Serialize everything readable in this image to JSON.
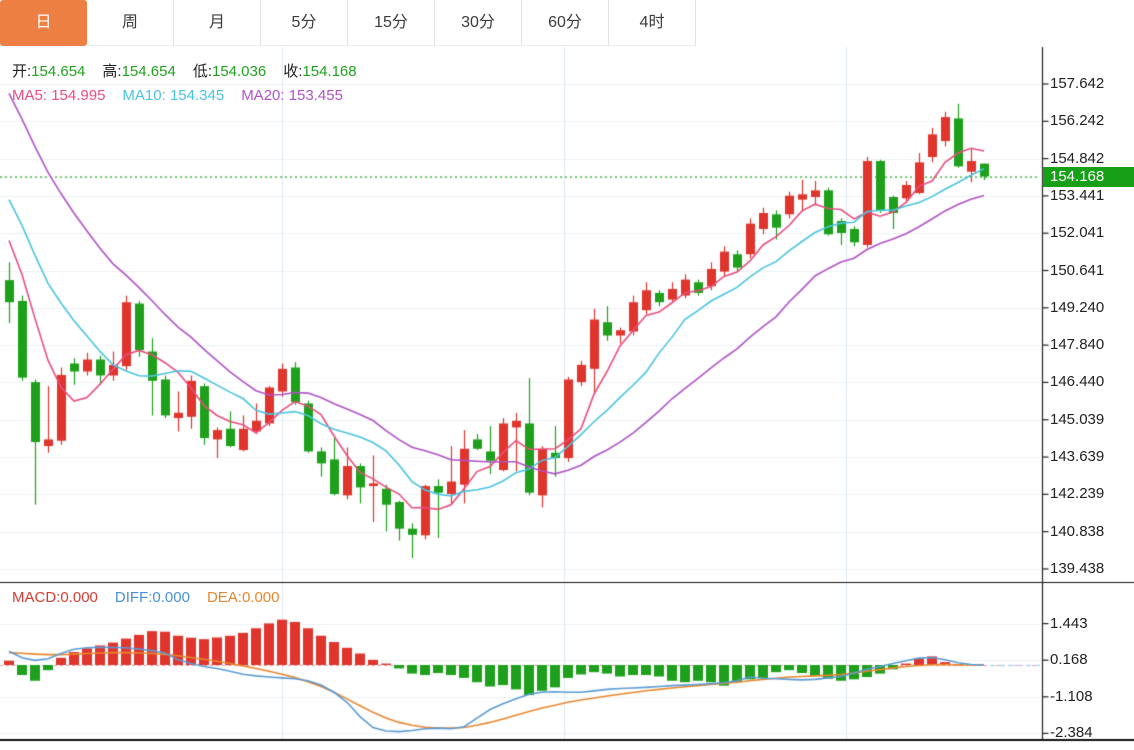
{
  "tabs": {
    "items": [
      {
        "label": "日",
        "active": true
      },
      {
        "label": "周",
        "active": false
      },
      {
        "label": "月",
        "active": false
      },
      {
        "label": "5分",
        "active": false
      },
      {
        "label": "15分",
        "active": false
      },
      {
        "label": "30分",
        "active": false
      },
      {
        "label": "60分",
        "active": false
      },
      {
        "label": "4时",
        "active": false
      }
    ]
  },
  "price_info": {
    "open_label": "开:",
    "open_value": "154.654",
    "high_label": "高:",
    "high_value": "154.654",
    "low_label": "低:",
    "low_value": "154.036",
    "close_label": "收:",
    "close_value": "154.168"
  },
  "ma_info": {
    "ma5_label": "MA5:",
    "ma5_value": "154.995",
    "ma10_label": "MA10:",
    "ma10_value": "154.345",
    "ma20_label": "MA20:",
    "ma20_value": "153.455"
  },
  "macd_info": {
    "macd_label": "MACD:",
    "macd_value": "0.000",
    "diff_label": "DIFF:",
    "diff_value": "0.000",
    "dea_label": "DEA:",
    "dea_value": "0.000"
  },
  "current_price": "154.168",
  "colors": {
    "up": "#e0352d",
    "down": "#1ea01c",
    "ma5": "#ea4d7e",
    "ma10": "#49c4e0",
    "ma20": "#b152c8",
    "diff_line": "#5b9bd5",
    "dea_line": "#e8872e",
    "macd_label": "#d63c31",
    "diff_label": "#4a90d9",
    "dea_label": "#e8862e",
    "value_green": "#21a21f",
    "tab_active": "#ee7f43",
    "badge_bg": "#17a017",
    "dotted_price": "#22aa22",
    "grid_h": "#edf2f7",
    "grid_v": "#dce8f2",
    "axis_line": "#222222",
    "panel_border": "#111111",
    "zero_dash": "#e8a0a0",
    "diff_dash": "#aed6f1"
  },
  "chart_data": [
    {
      "type": "candlestick",
      "convention": "red = rise, green = fall",
      "ylim": [
        139.438,
        157.642
      ],
      "price_axis_labels": [
        "157.642",
        "156.242",
        "154.842",
        "153.441",
        "152.041",
        "150.641",
        "149.240",
        "147.840",
        "146.440",
        "145.039",
        "143.639",
        "142.239",
        "140.838",
        "139.438"
      ],
      "current_price": 154.168,
      "ma_periods": [
        5,
        10,
        20
      ],
      "ma_seed": [
        166,
        164.8,
        163.7,
        162.6,
        161.6,
        160.6,
        159.7,
        158.8,
        157.9,
        157.1,
        156.3,
        155.5,
        154.8,
        154.1,
        153.5,
        153.0,
        152.5,
        152.1,
        151.8
      ],
      "candles": [
        [
          150.28,
          150.95,
          148.67,
          149.45
        ],
        [
          149.5,
          149.7,
          146.5,
          146.62
        ],
        [
          146.45,
          146.55,
          141.85,
          144.2
        ],
        [
          144.05,
          146.3,
          143.8,
          144.3
        ],
        [
          144.25,
          147.0,
          144.1,
          146.72
        ],
        [
          147.15,
          147.35,
          146.35,
          146.85
        ],
        [
          146.85,
          147.55,
          146.7,
          147.3
        ],
        [
          147.3,
          147.45,
          146.35,
          146.7
        ],
        [
          146.7,
          147.6,
          146.5,
          147.1
        ],
        [
          147.05,
          149.7,
          146.9,
          149.45
        ],
        [
          149.4,
          149.5,
          147.4,
          147.65
        ],
        [
          147.6,
          148.1,
          145.2,
          146.5
        ],
        [
          146.55,
          146.7,
          145.1,
          145.2
        ],
        [
          145.1,
          146.1,
          144.6,
          145.3
        ],
        [
          145.15,
          146.7,
          144.7,
          146.5
        ],
        [
          146.3,
          146.4,
          144.1,
          144.35
        ],
        [
          144.3,
          144.75,
          143.6,
          144.65
        ],
        [
          144.7,
          145.35,
          144.0,
          144.05
        ],
        [
          143.9,
          145.2,
          143.85,
          144.7
        ],
        [
          144.6,
          145.65,
          144.5,
          145.0
        ],
        [
          144.9,
          146.3,
          144.8,
          146.25
        ],
        [
          146.1,
          147.15,
          145.9,
          146.95
        ],
        [
          147.0,
          147.2,
          145.6,
          145.7
        ],
        [
          145.65,
          145.75,
          143.8,
          143.85
        ],
        [
          143.85,
          144.0,
          142.9,
          143.4
        ],
        [
          143.55,
          144.35,
          142.2,
          142.25
        ],
        [
          142.2,
          144.0,
          142.05,
          143.3
        ],
        [
          143.3,
          143.4,
          141.9,
          142.5
        ],
        [
          142.55,
          143.7,
          141.2,
          142.65
        ],
        [
          142.45,
          142.6,
          140.85,
          141.85
        ],
        [
          141.95,
          142.0,
          140.5,
          140.95
        ],
        [
          140.95,
          141.15,
          139.85,
          140.72
        ],
        [
          140.7,
          142.6,
          140.55,
          142.55
        ],
        [
          142.55,
          142.8,
          140.6,
          142.3
        ],
        [
          142.25,
          144.05,
          141.85,
          142.72
        ],
        [
          142.6,
          144.65,
          141.9,
          143.95
        ],
        [
          144.3,
          144.5,
          143.9,
          143.95
        ],
        [
          143.85,
          144.8,
          143.0,
          143.5
        ],
        [
          143.15,
          145.1,
          143.1,
          144.9
        ],
        [
          144.75,
          145.3,
          143.1,
          145.0
        ],
        [
          144.9,
          146.6,
          142.2,
          142.3
        ],
        [
          142.2,
          144.05,
          141.75,
          143.95
        ],
        [
          143.8,
          144.8,
          142.9,
          143.6
        ],
        [
          143.6,
          146.65,
          143.45,
          146.55
        ],
        [
          146.45,
          147.25,
          146.3,
          147.1
        ],
        [
          146.95,
          149.2,
          146.0,
          148.8
        ],
        [
          148.7,
          149.3,
          148.0,
          148.2
        ],
        [
          148.2,
          148.5,
          147.9,
          148.4
        ],
        [
          148.35,
          149.7,
          148.2,
          149.45
        ],
        [
          149.15,
          150.2,
          149.0,
          149.9
        ],
        [
          149.8,
          149.9,
          149.3,
          149.45
        ],
        [
          149.55,
          150.2,
          149.45,
          149.95
        ],
        [
          149.7,
          150.5,
          149.6,
          150.3
        ],
        [
          150.2,
          150.3,
          149.7,
          149.8
        ],
        [
          150.05,
          150.95,
          149.9,
          150.7
        ],
        [
          150.6,
          151.55,
          150.4,
          151.35
        ],
        [
          151.25,
          151.4,
          150.6,
          150.75
        ],
        [
          151.25,
          152.6,
          151.1,
          152.4
        ],
        [
          152.2,
          153.0,
          152.0,
          152.8
        ],
        [
          152.75,
          152.9,
          151.8,
          152.25
        ],
        [
          152.75,
          153.6,
          152.6,
          153.45
        ],
        [
          153.3,
          154.05,
          152.85,
          153.5
        ],
        [
          153.4,
          154.0,
          153.1,
          153.65
        ],
        [
          153.65,
          153.75,
          151.95,
          152.0
        ],
        [
          152.5,
          152.6,
          151.6,
          152.05
        ],
        [
          152.2,
          152.3,
          151.55,
          151.7
        ],
        [
          151.6,
          154.9,
          151.5,
          154.75
        ],
        [
          154.75,
          154.8,
          152.8,
          152.9
        ],
        [
          153.4,
          153.45,
          152.2,
          152.8
        ],
        [
          153.35,
          154.0,
          153.2,
          153.85
        ],
        [
          153.55,
          155.05,
          153.5,
          154.7
        ],
        [
          154.9,
          156.0,
          154.7,
          155.75
        ],
        [
          155.5,
          156.6,
          155.3,
          156.4
        ],
        [
          156.35,
          156.9,
          154.5,
          154.55
        ],
        [
          154.35,
          155.2,
          153.95,
          154.75
        ],
        [
          154.654,
          154.654,
          154.036,
          154.168
        ]
      ]
    },
    {
      "type": "macd",
      "ylim": [
        -2.384,
        1.443
      ],
      "axis_labels": [
        "1.443",
        "0.168",
        "-1.108",
        "-2.384"
      ],
      "hist": [
        0.15,
        -0.35,
        -0.55,
        -0.18,
        0.25,
        0.45,
        0.58,
        0.68,
        0.78,
        0.92,
        1.05,
        1.18,
        1.16,
        1.02,
        0.95,
        0.9,
        0.96,
        1.02,
        1.12,
        1.28,
        1.45,
        1.58,
        1.5,
        1.28,
        1.02,
        0.8,
        0.6,
        0.4,
        0.18,
        0.05,
        -0.12,
        -0.3,
        -0.35,
        -0.28,
        -0.35,
        -0.45,
        -0.6,
        -0.75,
        -0.7,
        -0.85,
        -1.05,
        -0.9,
        -0.78,
        -0.45,
        -0.33,
        -0.25,
        -0.3,
        -0.4,
        -0.35,
        -0.35,
        -0.4,
        -0.55,
        -0.6,
        -0.55,
        -0.6,
        -0.72,
        -0.6,
        -0.5,
        -0.45,
        -0.25,
        -0.18,
        -0.28,
        -0.38,
        -0.48,
        -0.55,
        -0.5,
        -0.42,
        -0.3,
        -0.15,
        0.05,
        0.22,
        0.3,
        0.1,
        0.02,
        0.0,
        0.0
      ],
      "diff": [
        0.48,
        0.25,
        0.16,
        0.22,
        0.4,
        0.55,
        0.6,
        0.62,
        0.61,
        0.6,
        0.56,
        0.5,
        0.42,
        0.18,
        0.05,
        -0.05,
        -0.12,
        -0.22,
        -0.32,
        -0.38,
        -0.42,
        -0.45,
        -0.48,
        -0.55,
        -0.7,
        -0.95,
        -1.3,
        -1.8,
        -2.18,
        -2.3,
        -2.32,
        -2.28,
        -2.22,
        -2.2,
        -2.22,
        -2.15,
        -1.85,
        -1.55,
        -1.35,
        -1.18,
        -1.02,
        -0.95,
        -0.93,
        -0.95,
        -0.95,
        -0.9,
        -0.85,
        -0.82,
        -0.8,
        -0.78,
        -0.75,
        -0.72,
        -0.7,
        -0.68,
        -0.65,
        -0.62,
        -0.55,
        -0.42,
        -0.46,
        -0.48,
        -0.5,
        -0.52,
        -0.5,
        -0.45,
        -0.4,
        -0.28,
        -0.15,
        -0.05,
        0.05,
        0.15,
        0.24,
        0.26,
        0.18,
        0.08,
        0.02,
        0.0
      ],
      "dea": [
        0.43,
        0.41,
        0.38,
        0.36,
        0.36,
        0.38,
        0.4,
        0.42,
        0.43,
        0.43,
        0.42,
        0.4,
        0.37,
        0.32,
        0.26,
        0.2,
        0.13,
        0.05,
        -0.03,
        -0.12,
        -0.22,
        -0.32,
        -0.44,
        -0.58,
        -0.75,
        -0.95,
        -1.18,
        -1.42,
        -1.65,
        -1.85,
        -2.0,
        -2.1,
        -2.17,
        -2.2,
        -2.2,
        -2.18,
        -2.1,
        -2.0,
        -1.88,
        -1.75,
        -1.62,
        -1.5,
        -1.4,
        -1.3,
        -1.22,
        -1.15,
        -1.08,
        -1.02,
        -0.96,
        -0.9,
        -0.85,
        -0.8,
        -0.76,
        -0.72,
        -0.68,
        -0.64,
        -0.6,
        -0.55,
        -0.5,
        -0.46,
        -0.42,
        -0.4,
        -0.38,
        -0.36,
        -0.33,
        -0.28,
        -0.22,
        -0.16,
        -0.1,
        -0.05,
        -0.02,
        0.01,
        0.02,
        0.01,
        0.0,
        0.0
      ]
    }
  ]
}
